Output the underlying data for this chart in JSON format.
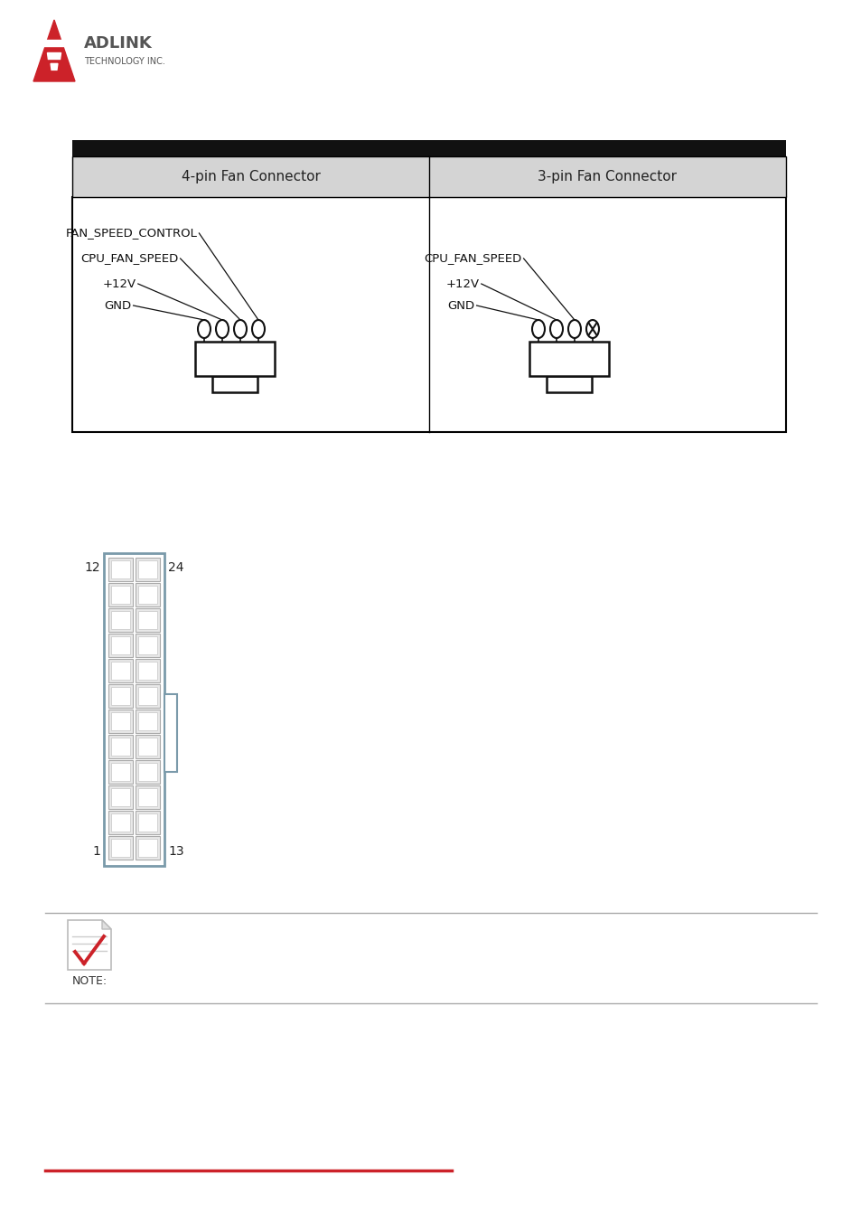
{
  "bg_color": "#ffffff",
  "logo_color": "#cc2229",
  "logo_gray": "#555555",
  "table_header_bg": "#111111",
  "table_subheader_bg": "#d4d4d4",
  "table_border_color": "#000000",
  "col1_label": "4-pin Fan Connector",
  "col2_label": "3-pin Fan Connector",
  "left_signals": [
    "FAN_SPEED_CONTROL",
    "CPU_FAN_SPEED",
    "+12V",
    "GND"
  ],
  "right_signals": [
    "CPU_FAN_SPEED",
    "+12V",
    "GND"
  ],
  "connector_color": "#000000",
  "note_icon_color": "#cc2229",
  "red_line_color": "#cc2229",
  "latch_color": "#7fa0b0",
  "pin_sq_edge": "#888888",
  "pin_sq_fill": "#e8e8e8"
}
